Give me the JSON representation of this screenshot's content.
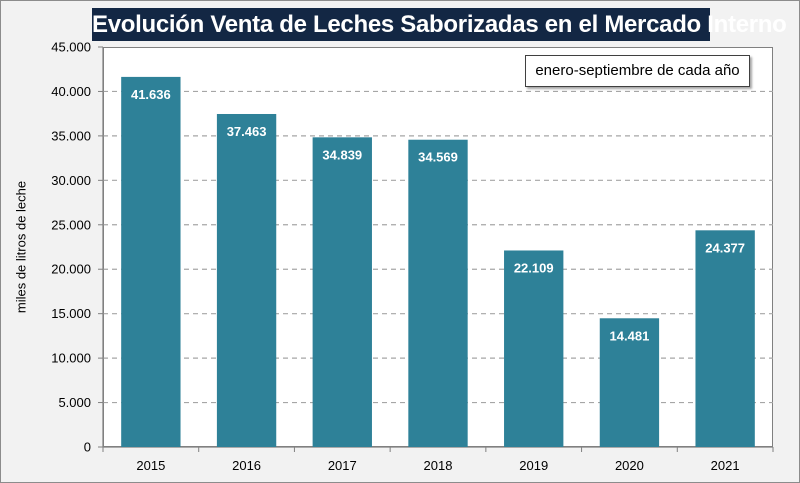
{
  "chart_data": {
    "type": "bar",
    "title": "Evolución Venta de Leches Saborizadas en el Mercado Interno",
    "annotation": "enero-septiembre de cada año",
    "xlabel": "",
    "ylabel": "miles de litros de leche",
    "categories": [
      "2015",
      "2016",
      "2017",
      "2018",
      "2019",
      "2020",
      "2021"
    ],
    "values": [
      41636,
      37463,
      34839,
      34569,
      22109,
      14481,
      24377
    ],
    "data_labels": [
      "41.636",
      "37.463",
      "34.839",
      "34.569",
      "22.109",
      "14.481",
      "24.377"
    ],
    "ylim": [
      0,
      45000
    ],
    "yticks": [
      0,
      5000,
      10000,
      15000,
      20000,
      25000,
      30000,
      35000,
      40000,
      45000
    ],
    "ytick_labels": [
      "0",
      "5.000",
      "10.000",
      "15.000",
      "20.000",
      "25.000",
      "30.000",
      "35.000",
      "40.000",
      "45.000"
    ],
    "grid": "horizontal-dashed",
    "legend": "none",
    "colors": {
      "bar": "#2E8198",
      "title_bg": "#132744",
      "grid": "#a6a6a6"
    }
  }
}
